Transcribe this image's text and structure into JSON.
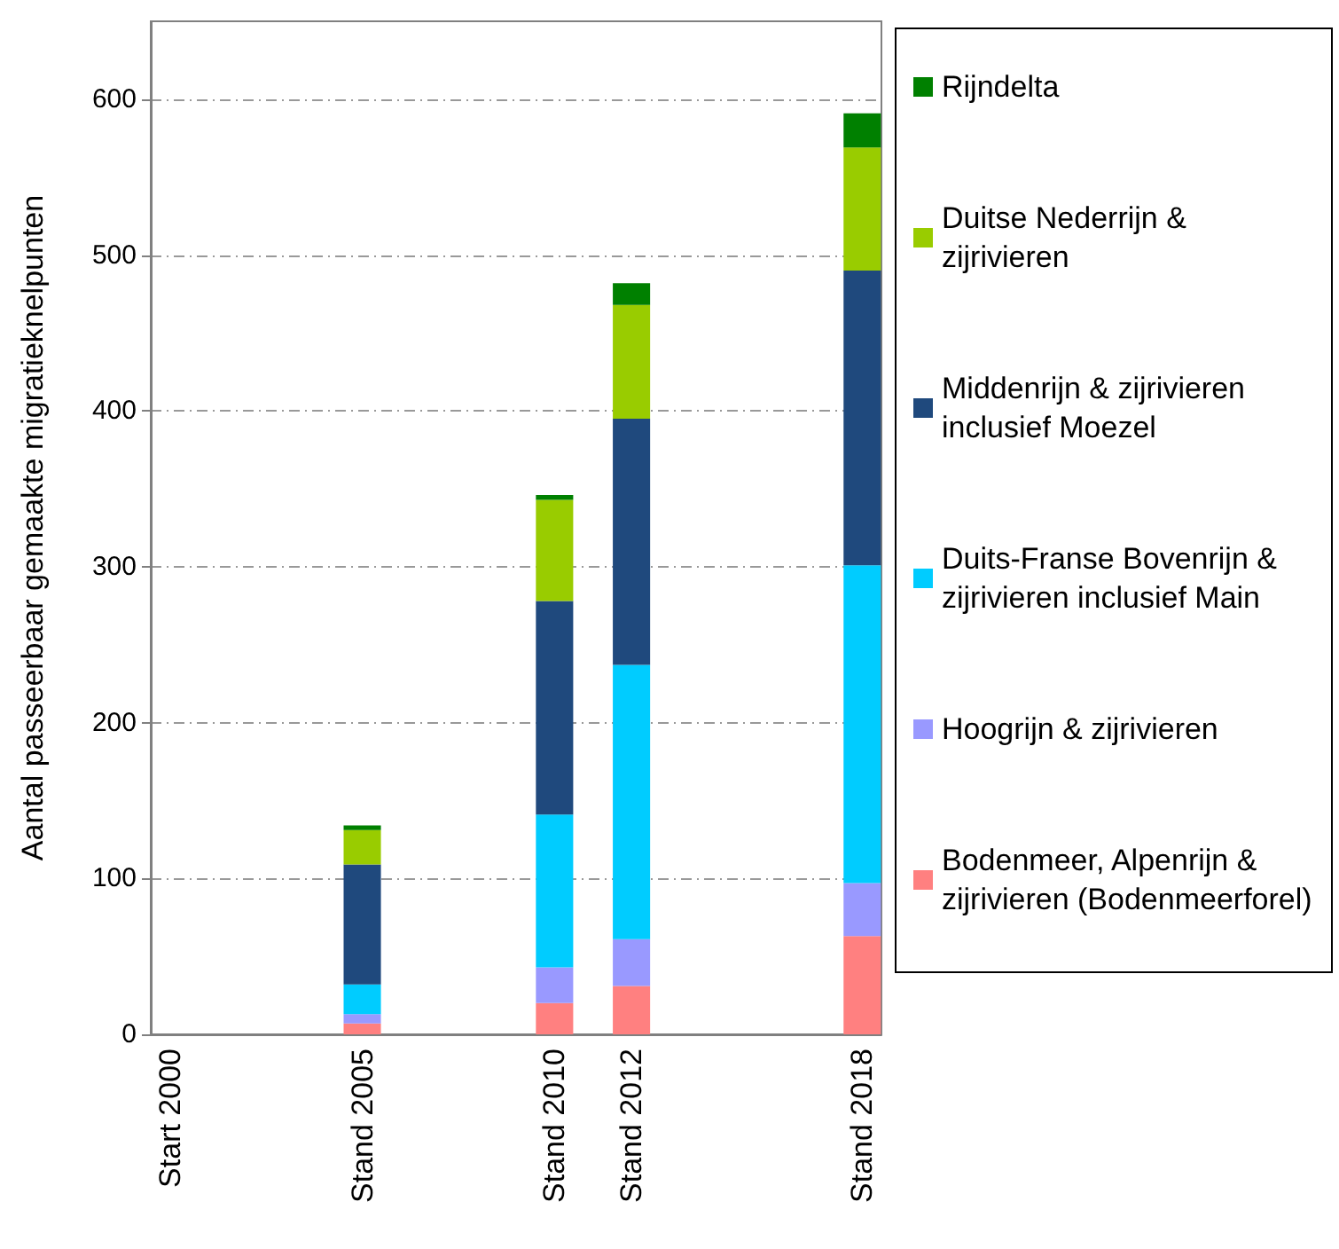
{
  "chart_data": {
    "type": "bar",
    "stacked": true,
    "ylabel": "Aantal passeerbaar gemaakte migratieknelpunten",
    "categories": [
      "Start 2000",
      null,
      null,
      null,
      null,
      "Stand 2005",
      null,
      null,
      null,
      null,
      "Stand 2010",
      null,
      "Stand 2012",
      null,
      null,
      null,
      null,
      null,
      "Stand 2018"
    ],
    "ylim": [
      0,
      650
    ],
    "yticks": [
      0,
      100,
      200,
      300,
      400,
      500,
      600
    ],
    "grid": "y",
    "legend": "right",
    "series": [
      {
        "name": "Bodenmeer, Alpenrijn & zijrivieren (Bodenmeerforel)",
        "color": "#ff8080",
        "values": [
          0,
          null,
          null,
          null,
          null,
          7,
          null,
          null,
          null,
          null,
          20,
          null,
          31,
          null,
          null,
          null,
          null,
          null,
          63
        ]
      },
      {
        "name": "Hoogrijn & zijrivieren",
        "color": "#9999ff",
        "values": [
          0,
          null,
          null,
          null,
          null,
          6,
          null,
          null,
          null,
          null,
          23,
          null,
          30,
          null,
          null,
          null,
          null,
          null,
          34
        ]
      },
      {
        "name": "Duits-Franse Bovenrijn & zijrivieren inclusief Main",
        "color": "#00ccff",
        "values": [
          0,
          null,
          null,
          null,
          null,
          19,
          null,
          null,
          null,
          null,
          98,
          null,
          176,
          null,
          null,
          null,
          null,
          null,
          204
        ]
      },
      {
        "name": "Middenrijn & zijrivieren inclusief Moezel",
        "color": "#1f497d",
        "values": [
          0,
          null,
          null,
          null,
          null,
          77,
          null,
          null,
          null,
          null,
          137,
          null,
          158,
          null,
          null,
          null,
          null,
          null,
          189
        ]
      },
      {
        "name": "Duitse Nederrijn & zijrivieren",
        "color": "#99cc00",
        "values": [
          0,
          null,
          null,
          null,
          null,
          22,
          null,
          null,
          null,
          null,
          65,
          null,
          73,
          null,
          null,
          null,
          null,
          null,
          79
        ]
      },
      {
        "name": "Rijndelta",
        "color": "#008000",
        "values": [
          0,
          null,
          null,
          null,
          null,
          3,
          null,
          null,
          null,
          null,
          3,
          null,
          14,
          null,
          null,
          null,
          null,
          null,
          22
        ]
      }
    ]
  }
}
